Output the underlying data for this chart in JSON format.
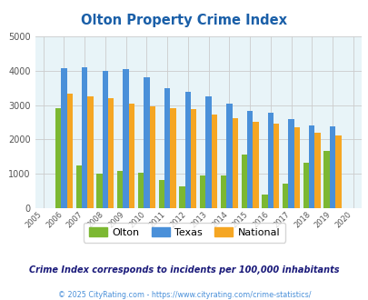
{
  "title": "Olton Property Crime Index",
  "all_years": [
    2005,
    2006,
    2007,
    2008,
    2009,
    2010,
    2011,
    2012,
    2013,
    2014,
    2015,
    2016,
    2017,
    2018,
    2019,
    2020
  ],
  "bar_years": [
    2006,
    2007,
    2008,
    2009,
    2010,
    2011,
    2012,
    2013,
    2014,
    2015,
    2016,
    2017,
    2018,
    2019
  ],
  "olton": [
    2920,
    1250,
    1000,
    1080,
    1050,
    830,
    650,
    960,
    960,
    1560,
    410,
    730,
    1330,
    1680
  ],
  "texas": [
    4080,
    4100,
    4000,
    4030,
    3800,
    3480,
    3380,
    3250,
    3050,
    2840,
    2780,
    2580,
    2400,
    2390
  ],
  "national": [
    3340,
    3250,
    3200,
    3040,
    2960,
    2920,
    2870,
    2730,
    2610,
    2500,
    2460,
    2360,
    2190,
    2130
  ],
  "olton_color": "#7cb832",
  "texas_color": "#4a90d9",
  "national_color": "#f5a623",
  "bg_color": "#e8f4f8",
  "ylim": [
    0,
    5000
  ],
  "yticks": [
    0,
    1000,
    2000,
    3000,
    4000,
    5000
  ],
  "subtitle": "Crime Index corresponds to incidents per 100,000 inhabitants",
  "footer": "© 2025 CityRating.com - https://www.cityrating.com/crime-statistics/",
  "title_color": "#1a5fa8",
  "subtitle_color": "#1a1a7a",
  "footer_color": "#4a90d9"
}
